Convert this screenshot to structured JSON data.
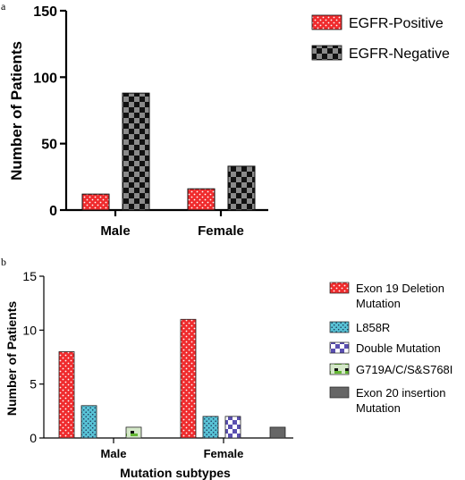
{
  "chart_data": [
    {
      "panel": "a",
      "type": "bar",
      "categories": [
        "Male",
        "Female"
      ],
      "series": [
        {
          "name": "EGFR-Positive",
          "values": [
            12,
            16
          ],
          "color": "#ef2b2d",
          "pattern": "white-dots"
        },
        {
          "name": "EGFR-Negative",
          "values": [
            88,
            33
          ],
          "color": "#8a8a8a",
          "pattern": "black-checker"
        }
      ],
      "ylabel": "Number of Patients",
      "xlabel": "",
      "ylim": [
        0,
        150
      ],
      "yticks": [
        0,
        50,
        100,
        150
      ],
      "legend": "right",
      "grid": false
    },
    {
      "panel": "b",
      "type": "bar",
      "categories": [
        "Male",
        "Female"
      ],
      "series": [
        {
          "name": "Exon 19 Deletion Mutation",
          "values": [
            8,
            11
          ],
          "color": "#ef2b2d",
          "pattern": "white-dots"
        },
        {
          "name": "L858R",
          "values": [
            3,
            2
          ],
          "color": "#59c3d6",
          "pattern": "dark-dots"
        },
        {
          "name": "Double Mutation",
          "values": [
            0,
            2
          ],
          "color": "#ffffff",
          "pattern": "purple-checker"
        },
        {
          "name": "G719A/C/S&S768I",
          "values": [
            1,
            0
          ],
          "color": "#d4e8c8",
          "pattern": "green-black-block"
        },
        {
          "name": "Exon 20 insertion Mutation",
          "values": [
            0,
            1
          ],
          "color": "#666666",
          "pattern": "solid"
        }
      ],
      "ylabel": "Number of Patients",
      "xlabel": "Mutation subtypes",
      "ylim": [
        0,
        15
      ],
      "yticks": [
        0,
        5,
        10,
        15
      ],
      "legend": "right",
      "grid": false
    }
  ]
}
